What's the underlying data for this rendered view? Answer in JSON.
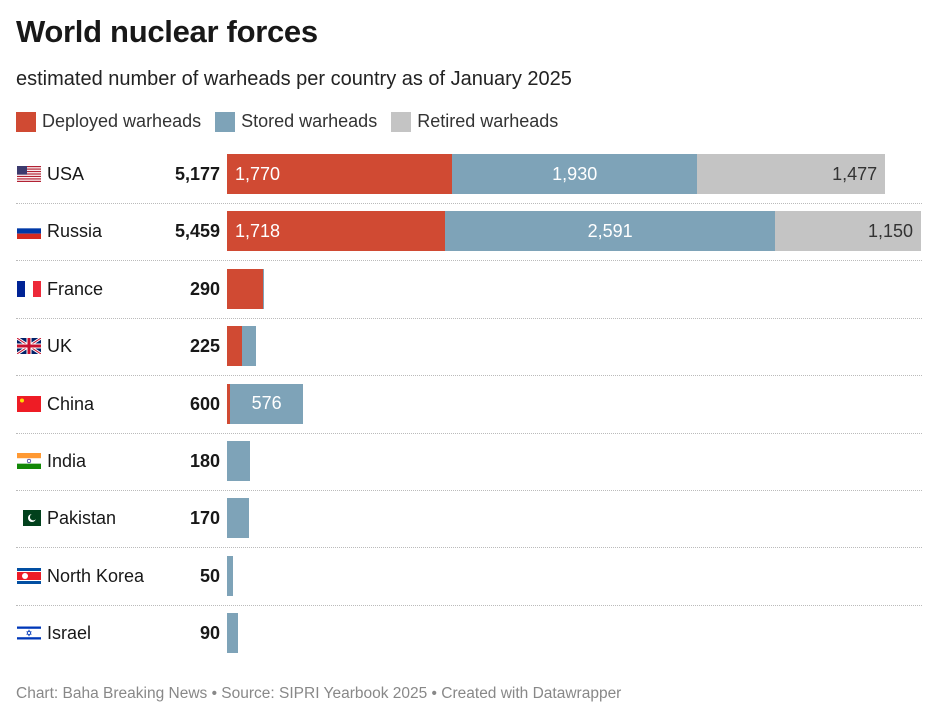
{
  "title": "World nuclear forces",
  "subtitle": "estimated number of warheads per country as of January 2025",
  "footer": "Chart: Baha Breaking News • Source: SIPRI Yearbook 2025 • Created with Datawrapper",
  "chart_data": {
    "type": "bar",
    "stacked": true,
    "orientation": "horizontal",
    "legend_position": "top-left",
    "colors": {
      "deployed": "#d04a33",
      "stored": "#7ea3b8",
      "retired": "#c4c4c4"
    },
    "series_names": [
      "Deployed warheads",
      "Stored warheads",
      "Retired warheads"
    ],
    "categories": [
      "USA",
      "Russia",
      "France",
      "UK",
      "China",
      "India",
      "Pakistan",
      "North Korea",
      "Israel"
    ],
    "flags": [
      "us",
      "ru",
      "fr",
      "gb",
      "cn",
      "in",
      "pk",
      "kp",
      "il"
    ],
    "totals": [
      "5,177",
      "5,459",
      "290",
      "225",
      "600",
      "180",
      "170",
      "50",
      "90"
    ],
    "series": [
      {
        "name": "Deployed warheads",
        "values": [
          1770,
          1718,
          280,
          120,
          24,
          0,
          0,
          0,
          0
        ],
        "labels": [
          "1,770",
          "1,718",
          "",
          "",
          "",
          "",
          "",
          "",
          ""
        ]
      },
      {
        "name": "Stored warheads",
        "values": [
          1930,
          2591,
          10,
          105,
          576,
          180,
          170,
          50,
          90
        ],
        "labels": [
          "1,930",
          "2,591",
          "",
          "",
          "576",
          "",
          "",
          "",
          ""
        ]
      },
      {
        "name": "Retired warheads",
        "values": [
          1477,
          1150,
          0,
          0,
          0,
          0,
          0,
          0,
          0
        ],
        "labels": [
          "1,477",
          "1,150",
          "",
          "",
          "",
          "",
          "",
          "",
          ""
        ]
      }
    ]
  }
}
